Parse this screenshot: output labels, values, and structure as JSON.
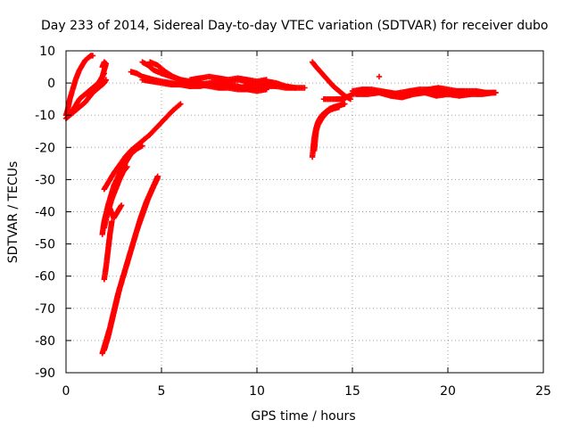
{
  "chart_data": {
    "type": "scatter",
    "title": "Day 233 of 2014, Sidereal Day-to-day VTEC variation (SDTVAR) for receiver dubo",
    "xlabel": "GPS time / hours",
    "ylabel": "SDTVAR / TECUs",
    "xlim": [
      0,
      25
    ],
    "ylim": [
      -90,
      10
    ],
    "x_ticks": [
      0,
      5,
      10,
      15,
      20,
      25
    ],
    "y_ticks": [
      10,
      0,
      -10,
      -20,
      -30,
      -40,
      -50,
      -60,
      -70,
      -80,
      -90
    ],
    "grid": true,
    "legend": "none",
    "marker": "plus",
    "color": "#ff0000",
    "series": [
      {
        "x": [
          0.0,
          0.1,
          0.2,
          0.3,
          0.4,
          0.5,
          0.6,
          0.7,
          0.8,
          0.9,
          1.0,
          1.1,
          1.2,
          1.3,
          1.4
        ],
        "y": [
          -10,
          -8,
          -5,
          -3,
          -1,
          1,
          2.5,
          4,
          5,
          6,
          7,
          7.5,
          8,
          8.5,
          8.5
        ]
      },
      {
        "x": [
          0.0,
          0.2,
          0.4,
          0.6,
          0.8,
          1.0,
          1.2,
          1.4,
          1.6,
          1.8,
          1.9,
          2.0
        ],
        "y": [
          -11,
          -10,
          -9,
          -8,
          -7,
          -6,
          -4.5,
          -3,
          -1.5,
          0,
          2,
          3
        ]
      },
      {
        "x": [
          0.3,
          0.5,
          0.7,
          0.9,
          1.1,
          1.3,
          1.5,
          1.7,
          1.9,
          2.0,
          2.1,
          2.0,
          1.9
        ],
        "y": [
          -9,
          -7,
          -5,
          -4,
          -3,
          -2,
          -1,
          0,
          2,
          4,
          6,
          6.5,
          5
        ]
      },
      {
        "x": [
          1.2,
          1.4,
          1.6,
          1.8,
          2.0,
          2.1
        ],
        "y": [
          -4,
          -3,
          -2,
          -1,
          0,
          1
        ]
      },
      {
        "x": [
          3.4,
          3.7,
          4.0,
          4.3,
          4.6,
          5.0,
          5.5,
          6.0,
          6.5,
          7.0,
          7.5,
          8.0,
          8.5,
          9.0,
          9.5,
          10.0,
          10.5,
          11.0,
          11.5,
          12.0
        ],
        "y": [
          3.5,
          3,
          2,
          1.5,
          1,
          0.5,
          0,
          -0.5,
          -1,
          -0.5,
          0,
          0.5,
          0.5,
          1,
          0.5,
          0,
          0.5,
          0,
          -1,
          -1.5
        ]
      },
      {
        "x": [
          4.0,
          4.3,
          4.6,
          5.0,
          5.5,
          6.0,
          6.5,
          7.0,
          7.5,
          8.0,
          8.5,
          9.0,
          9.5,
          10.0,
          10.5,
          11.0
        ],
        "y": [
          6.5,
          5.5,
          4,
          3,
          2,
          1,
          0,
          -0.5,
          -1,
          -1.5,
          -1.5,
          -2,
          -2,
          -1.5,
          -1,
          -1
        ]
      },
      {
        "x": [
          4.4,
          4.8,
          5.2,
          5.6,
          6.0,
          6.5,
          7.0,
          7.5,
          8.0,
          8.5,
          9.0,
          9.5,
          10.0,
          10.5
        ],
        "y": [
          6.5,
          5.5,
          3.5,
          2,
          1,
          0.5,
          0,
          -0.5,
          0,
          -0.5,
          -1,
          -2,
          -2.5,
          -2
        ]
      },
      {
        "x": [
          4.0,
          4.5,
          5.0,
          5.5,
          6.0,
          6.5,
          7.0,
          7.5,
          8.0,
          8.5,
          9.0,
          9.5,
          10.0,
          10.5,
          11.0,
          11.5,
          12.0,
          12.5
        ],
        "y": [
          1,
          0.5,
          0,
          -0.5,
          -0.5,
          -1,
          -1,
          -0.5,
          -1,
          -1,
          -1.5,
          -1,
          -0.5,
          -0.5,
          -1,
          -1.5,
          -1.5,
          -1.5
        ]
      },
      {
        "x": [
          6.5,
          7.0,
          7.5,
          8.0,
          8.5,
          9.0,
          9.5,
          10.0,
          10.5
        ],
        "y": [
          1,
          1.5,
          2,
          1.5,
          1,
          1.5,
          1,
          0.5,
          1
        ]
      },
      {
        "x": [
          2.0,
          2.2,
          2.5,
          2.8,
          3.1,
          3.4,
          3.7,
          4.0,
          4.4,
          4.8,
          5.2,
          5.6,
          6.0
        ],
        "y": [
          -33,
          -31,
          -28,
          -25.5,
          -23,
          -21,
          -19.5,
          -18,
          -16,
          -13.5,
          -11,
          -8.5,
          -6.5
        ]
      },
      {
        "x": [
          1.9,
          2.0,
          2.2,
          2.5,
          2.8,
          3.1,
          3.4,
          3.7,
          4.0
        ],
        "y": [
          -47,
          -43,
          -38,
          -32,
          -28,
          -25,
          -22,
          -20.5,
          -19.5
        ]
      },
      {
        "x": [
          2.0,
          2.1,
          2.2,
          2.3,
          2.4
        ],
        "y": [
          -61,
          -57,
          -52,
          -47,
          -43
        ]
      },
      {
        "x": [
          2.1,
          2.3,
          2.5,
          2.7,
          2.9
        ],
        "y": [
          -41,
          -39,
          -42,
          -40,
          -38
        ]
      },
      {
        "x": [
          2.0,
          2.2,
          2.4,
          2.6,
          2.8,
          3.0,
          3.2
        ],
        "y": [
          -45,
          -40,
          -36,
          -33,
          -30,
          -27.5,
          -26
        ]
      },
      {
        "x": [
          1.9,
          2.1,
          2.3,
          2.5,
          2.7,
          3.0,
          3.3,
          3.6,
          3.9,
          4.2,
          4.5,
          4.8
        ],
        "y": [
          -84,
          -80,
          -76,
          -71,
          -66,
          -60,
          -54,
          -48,
          -42,
          -37,
          -33,
          -29
        ]
      },
      {
        "x": [
          2.0,
          2.2,
          2.4,
          2.6,
          2.8,
          3.1,
          3.4,
          3.7,
          4.0,
          4.3,
          4.6,
          4.8
        ],
        "y": [
          -83,
          -79,
          -74,
          -69,
          -64,
          -58,
          -52,
          -46,
          -41,
          -36,
          -32,
          -29.5
        ]
      },
      {
        "x": [
          12.9,
          13.1,
          13.4,
          13.7,
          14.0,
          14.3,
          14.6,
          14.9
        ],
        "y": [
          6.5,
          5,
          3,
          1,
          -1,
          -2.5,
          -4,
          -5
        ]
      },
      {
        "x": [
          12.9,
          12.95,
          13.0,
          13.1,
          13.2,
          13.4,
          13.6,
          13.8,
          14.0,
          14.3,
          14.6
        ],
        "y": [
          -23,
          -20,
          -17,
          -14,
          -12,
          -10,
          -9,
          -8,
          -7.5,
          -7,
          -6.5
        ]
      },
      {
        "x": [
          13.0,
          13.05,
          13.1,
          13.2,
          13.4,
          13.6,
          13.8,
          14.0,
          14.3
        ],
        "y": [
          -21,
          -18,
          -15,
          -13,
          -11,
          -9.5,
          -8.5,
          -8,
          -7.5
        ]
      },
      {
        "x": [
          13.5,
          14.0,
          14.5,
          15.0,
          15.5,
          16.0,
          16.5,
          17.0,
          17.5,
          18.0,
          18.5,
          19.0,
          19.5,
          20.0,
          20.5,
          21.0,
          21.5,
          22.0,
          22.5
        ],
        "y": [
          -5,
          -5,
          -5,
          -3.5,
          -3,
          -2.5,
          -3,
          -3.5,
          -3,
          -2.5,
          -3,
          -2,
          -2.5,
          -3,
          -3,
          -3,
          -3,
          -3,
          -3
        ]
      },
      {
        "x": [
          15.0,
          15.5,
          16.0,
          16.5,
          17.0,
          17.5,
          18.0,
          18.5,
          19.0,
          19.5,
          20.0,
          20.5,
          21.0,
          21.5,
          22.0,
          22.5
        ],
        "y": [
          -2.5,
          -2,
          -2,
          -2.5,
          -3,
          -3.5,
          -2.5,
          -2,
          -2,
          -1.5,
          -2,
          -2.5,
          -2.5,
          -2.5,
          -3,
          -3
        ]
      },
      {
        "x": [
          15.2,
          15.8,
          16.4,
          17.0,
          17.6,
          18.2,
          18.8,
          19.4,
          20.0,
          20.6,
          21.2,
          21.8,
          22.4
        ],
        "y": [
          -3.5,
          -3.5,
          -3,
          -4,
          -4.5,
          -3.5,
          -3,
          -4,
          -3.5,
          -4,
          -3.5,
          -3.5,
          -3
        ]
      },
      {
        "x": [
          16.4
        ],
        "y": [
          2
        ]
      }
    ]
  }
}
